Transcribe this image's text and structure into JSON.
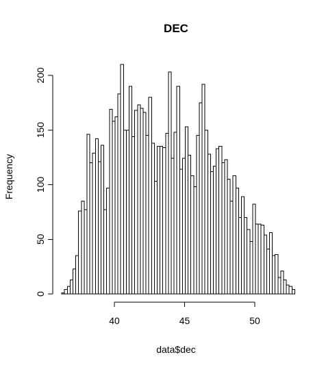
{
  "chart_data": {
    "type": "bar",
    "subtype": "histogram",
    "title": "DEC",
    "xlabel": "data$dec",
    "ylabel": "Frequency",
    "xlim": [
      36.25,
      52.5
    ],
    "ylim": [
      0,
      210
    ],
    "bin_start": 36.25,
    "bin_width": 0.2,
    "xticks": [
      40,
      45,
      50
    ],
    "yticks": [
      0,
      50,
      100,
      150,
      200
    ],
    "values": [
      1,
      4,
      7,
      13,
      23,
      35,
      76,
      85,
      77,
      146,
      120,
      129,
      142,
      121,
      136,
      77,
      97,
      169,
      158,
      162,
      183,
      210,
      150,
      150,
      190,
      144,
      168,
      173,
      170,
      166,
      145,
      180,
      138,
      103,
      135,
      135,
      134,
      147,
      203,
      124,
      148,
      190,
      114,
      124,
      153,
      127,
      108,
      98,
      145,
      175,
      192,
      150,
      128,
      112,
      117,
      133,
      135,
      120,
      123,
      105,
      85,
      108,
      97,
      70,
      89,
      70,
      59,
      48,
      82,
      64,
      64,
      63,
      54,
      41,
      56,
      35,
      36,
      15,
      21,
      13,
      8,
      7,
      4
    ]
  }
}
